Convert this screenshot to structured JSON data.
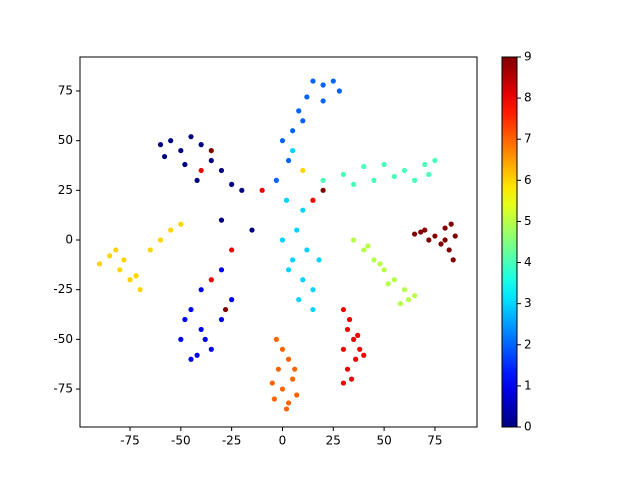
{
  "chart_data": {
    "type": "scatter",
    "colormap": "jet",
    "point_size": 2.6,
    "x": [
      65,
      70,
      75,
      80,
      83,
      78,
      82,
      84,
      72,
      68,
      80,
      85,
      30,
      32,
      35,
      30,
      36,
      32,
      38,
      34,
      30,
      40,
      33,
      37,
      -3,
      0,
      3,
      -2,
      5,
      0,
      -4,
      3,
      7,
      -5,
      2,
      6,
      -90,
      -85,
      -80,
      -75,
      -70,
      -82,
      -78,
      -72,
      -65,
      -60,
      -55,
      -50,
      35,
      40,
      45,
      50,
      55,
      60,
      62,
      58,
      48,
      52,
      42,
      65,
      20,
      30,
      40,
      50,
      60,
      70,
      75,
      65,
      55,
      45,
      35,
      72,
      0,
      5,
      10,
      15,
      8,
      3,
      12,
      18,
      7,
      2,
      10,
      15,
      15,
      20,
      25,
      28,
      20,
      12,
      8,
      5,
      0,
      3,
      -3,
      10,
      -45,
      -40,
      -50,
      -35,
      -45,
      -30,
      -40,
      -30,
      -25,
      -48,
      -38,
      -42,
      -60,
      -55,
      -50,
      -45,
      -40,
      -35,
      -58,
      -48,
      -42,
      -30,
      -25,
      -20,
      -30,
      -25,
      -35,
      -28,
      -15,
      -10,
      15,
      20,
      -40,
      -35,
      5,
      10
    ],
    "y": [
      3,
      5,
      2,
      6,
      8,
      -2,
      -5,
      -10,
      0,
      4,
      0,
      2,
      -35,
      -45,
      -50,
      -55,
      -60,
      -65,
      -55,
      -70,
      -72,
      -58,
      -40,
      -48,
      -50,
      -55,
      -60,
      -65,
      -70,
      -75,
      -80,
      -82,
      -78,
      -72,
      -85,
      -65,
      -12,
      -8,
      -15,
      -20,
      -25,
      -5,
      -10,
      -18,
      -5,
      0,
      5,
      8,
      0,
      -5,
      -10,
      -15,
      -20,
      -25,
      -30,
      -32,
      -12,
      -22,
      -3,
      -28,
      30,
      33,
      37,
      38,
      35,
      38,
      40,
      30,
      32,
      30,
      28,
      33,
      0,
      -10,
      -20,
      -25,
      -30,
      -15,
      -5,
      -10,
      5,
      20,
      15,
      -35,
      80,
      78,
      80,
      75,
      70,
      72,
      65,
      55,
      50,
      40,
      30,
      60,
      -35,
      -45,
      -50,
      -55,
      -60,
      -40,
      -25,
      -15,
      -30,
      -40,
      -50,
      -58,
      48,
      50,
      45,
      52,
      48,
      40,
      42,
      38,
      30,
      35,
      28,
      25,
      10,
      -5,
      -20,
      -35,
      5,
      25,
      20,
      25,
      35,
      45,
      45,
      35
    ],
    "c": [
      9,
      9,
      9,
      9,
      9,
      9,
      9,
      9,
      9,
      9,
      9,
      9,
      8,
      8,
      8,
      8,
      8,
      8,
      8,
      8,
      8,
      8,
      8,
      8,
      7,
      7,
      7,
      7,
      7,
      7,
      7,
      7,
      7,
      7,
      7,
      7,
      6,
      6,
      6,
      6,
      6,
      6,
      6,
      6,
      6,
      6,
      6,
      6,
      5,
      5,
      5,
      5,
      5,
      5,
      5,
      5,
      5,
      5,
      5,
      5,
      4,
      4,
      4,
      4,
      4,
      4,
      4,
      4,
      4,
      4,
      4,
      4,
      3,
      3,
      3,
      3,
      3,
      3,
      3,
      3,
      3,
      3,
      3,
      3,
      2,
      2,
      2,
      2,
      2,
      2,
      2,
      2,
      2,
      2,
      2,
      2,
      1,
      1,
      1,
      1,
      1,
      1,
      1,
      1,
      1,
      1,
      1,
      1,
      0,
      0,
      0,
      0,
      0,
      0,
      0,
      0,
      0,
      0,
      0,
      0,
      0,
      8,
      8,
      9,
      0,
      8,
      8,
      9,
      8,
      9,
      3,
      6
    ],
    "xlim": [
      -99.6,
      95.7
    ],
    "ylim": [
      -94.1,
      92.1
    ],
    "xticks": [
      -75,
      -50,
      -25,
      0,
      25,
      50,
      75
    ],
    "yticks": [
      -75,
      -50,
      -25,
      0,
      25,
      50,
      75
    ],
    "clim": [
      0,
      9
    ],
    "cticks": [
      0,
      1,
      2,
      3,
      4,
      5,
      6,
      7,
      8,
      9
    ]
  }
}
